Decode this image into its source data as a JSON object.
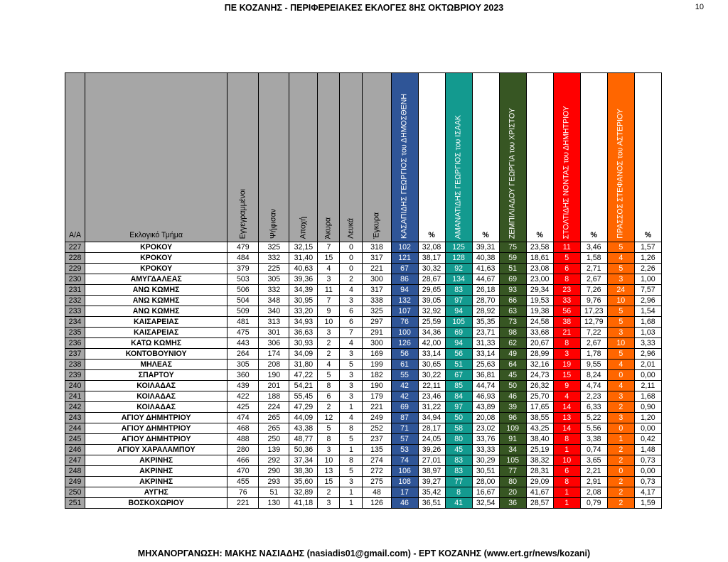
{
  "header": {
    "title": "ΠΕ ΚΟΖΑΝΗΣ - ΠΕΡΙΦΕΡΕΙΑΚΕΣ ΕΚΛΟΓΕΣ 8ΗΣ ΟΚΤΩΒΡΙΟΥ 2023",
    "page_number": "10"
  },
  "footer": {
    "text": "ΜΗΧΑΝΟΡΓΑΝΩΣΗ: ΜΑΚΗΣ ΝΑΣΙΑΔΗΣ (nasiadis01@gmail.com) - ΕΡΤ ΚΟΖΑΝΗΣ (www.ert.gr/news/kozani)"
  },
  "colors": {
    "gray": "#a6a6a6",
    "blue": "#2f5597",
    "teal": "#139a8f",
    "green": "#375623",
    "red": "#ff0000",
    "orange": "#ff6600"
  },
  "columns": {
    "aa": "Α/Α",
    "section": "Εκλογικό Τμήμα",
    "registered": "Εγγεγραμμένοι",
    "voted": "Ψήφισαν",
    "abstention": "Αποχή",
    "invalid": "Άκυρα",
    "blank": "Λευκά",
    "valid": "Έγκυρα",
    "pct": "%",
    "candidates": [
      {
        "name": "ΚΑΣΑΠΙΔΗΣ ΓΕΩΡΓΙΟΣ του ΔΗΜΟΣΘΕΝΗ",
        "color": "#2f5597"
      },
      {
        "name": "ΑΜΑΝΑΤΙΔΗΣ ΓΕΩΡΓΙΟΣ του ΙΣΑΑΚ",
        "color": "#139a8f"
      },
      {
        "name": "ΖΕΜΠΙΛΙΑΔΟΥ ΓΕΩΡΓΙΑ του ΧΡΙΣΤΟΥ",
        "color": "#375623"
      },
      {
        "name": "ΣΤΟΛΤΙΔΗΣ ΝΟΝΤΑΣ του ΔΗΜΗΤΡΙΟΥ",
        "color": "#ff0000"
      },
      {
        "name": "ΠΡΑΣΣΟΣ ΣΤΕΦΑΝΟΣ του ΑΣΤΕΡΙΟΥ",
        "color": "#ff6600"
      }
    ]
  },
  "rows": [
    {
      "aa": "227",
      "name": "ΚΡΟΚΟΥ",
      "reg": "479",
      "voted": "325",
      "abst": "32,15",
      "inv": "7",
      "blank": "0",
      "valid": "318",
      "c1": "102",
      "p1": "32,08",
      "c2": "125",
      "p2": "39,31",
      "c3": "75",
      "p3": "23,58",
      "c4": "11",
      "p4": "3,46",
      "c5": "5",
      "p5": "1,57"
    },
    {
      "aa": "228",
      "name": "ΚΡΟΚΟΥ",
      "reg": "484",
      "voted": "332",
      "abst": "31,40",
      "inv": "15",
      "blank": "0",
      "valid": "317",
      "c1": "121",
      "p1": "38,17",
      "c2": "128",
      "p2": "40,38",
      "c3": "59",
      "p3": "18,61",
      "c4": "5",
      "p4": "1,58",
      "c5": "4",
      "p5": "1,26"
    },
    {
      "aa": "229",
      "name": "ΚΡΟΚΟΥ",
      "reg": "379",
      "voted": "225",
      "abst": "40,63",
      "inv": "4",
      "blank": "0",
      "valid": "221",
      "c1": "67",
      "p1": "30,32",
      "c2": "92",
      "p2": "41,63",
      "c3": "51",
      "p3": "23,08",
      "c4": "6",
      "p4": "2,71",
      "c5": "5",
      "p5": "2,26"
    },
    {
      "aa": "230",
      "name": "ΑΜΥΓΔΑΛΕΑΣ",
      "reg": "503",
      "voted": "305",
      "abst": "39,36",
      "inv": "3",
      "blank": "2",
      "valid": "300",
      "c1": "86",
      "p1": "28,67",
      "c2": "134",
      "p2": "44,67",
      "c3": "69",
      "p3": "23,00",
      "c4": "8",
      "p4": "2,67",
      "c5": "3",
      "p5": "1,00"
    },
    {
      "aa": "231",
      "name": "ΑΝΩ ΚΩΜΗΣ",
      "reg": "506",
      "voted": "332",
      "abst": "34,39",
      "inv": "11",
      "blank": "4",
      "valid": "317",
      "c1": "94",
      "p1": "29,65",
      "c2": "83",
      "p2": "26,18",
      "c3": "93",
      "p3": "29,34",
      "c4": "23",
      "p4": "7,26",
      "c5": "24",
      "p5": "7,57"
    },
    {
      "aa": "232",
      "name": "ΑΝΩ ΚΩΜΗΣ",
      "reg": "504",
      "voted": "348",
      "abst": "30,95",
      "inv": "7",
      "blank": "3",
      "valid": "338",
      "c1": "132",
      "p1": "39,05",
      "c2": "97",
      "p2": "28,70",
      "c3": "66",
      "p3": "19,53",
      "c4": "33",
      "p4": "9,76",
      "c5": "10",
      "p5": "2,96"
    },
    {
      "aa": "233",
      "name": "ΑΝΩ ΚΩΜΗΣ",
      "reg": "509",
      "voted": "340",
      "abst": "33,20",
      "inv": "9",
      "blank": "6",
      "valid": "325",
      "c1": "107",
      "p1": "32,92",
      "c2": "94",
      "p2": "28,92",
      "c3": "63",
      "p3": "19,38",
      "c4": "56",
      "p4": "17,23",
      "c5": "5",
      "p5": "1,54"
    },
    {
      "aa": "234",
      "name": "ΚΑΙΣΑΡΕΙΑΣ",
      "reg": "481",
      "voted": "313",
      "abst": "34,93",
      "inv": "10",
      "blank": "6",
      "valid": "297",
      "c1": "76",
      "p1": "25,59",
      "c2": "105",
      "p2": "35,35",
      "c3": "73",
      "p3": "24,58",
      "c4": "38",
      "p4": "12,79",
      "c5": "5",
      "p5": "1,68"
    },
    {
      "aa": "235",
      "name": "ΚΑΙΣΑΡΕΙΑΣ",
      "reg": "475",
      "voted": "301",
      "abst": "36,63",
      "inv": "3",
      "blank": "7",
      "valid": "291",
      "c1": "100",
      "p1": "34,36",
      "c2": "69",
      "p2": "23,71",
      "c3": "98",
      "p3": "33,68",
      "c4": "21",
      "p4": "7,22",
      "c5": "3",
      "p5": "1,03"
    },
    {
      "aa": "236",
      "name": "ΚΑΤΩ ΚΩΜΗΣ",
      "reg": "443",
      "voted": "306",
      "abst": "30,93",
      "inv": "2",
      "blank": "4",
      "valid": "300",
      "c1": "126",
      "p1": "42,00",
      "c2": "94",
      "p2": "31,33",
      "c3": "62",
      "p3": "20,67",
      "c4": "8",
      "p4": "2,67",
      "c5": "10",
      "p5": "3,33"
    },
    {
      "aa": "237",
      "name": "ΚΟΝΤΟΒΟΥΝΙΟΥ",
      "reg": "264",
      "voted": "174",
      "abst": "34,09",
      "inv": "2",
      "blank": "3",
      "valid": "169",
      "c1": "56",
      "p1": "33,14",
      "c2": "56",
      "p2": "33,14",
      "c3": "49",
      "p3": "28,99",
      "c4": "3",
      "p4": "1,78",
      "c5": "5",
      "p5": "2,96"
    },
    {
      "aa": "238",
      "name": "ΜΗΛΕΑΣ",
      "reg": "305",
      "voted": "208",
      "abst": "31,80",
      "inv": "4",
      "blank": "5",
      "valid": "199",
      "c1": "61",
      "p1": "30,65",
      "c2": "51",
      "p2": "25,63",
      "c3": "64",
      "p3": "32,16",
      "c4": "19",
      "p4": "9,55",
      "c5": "4",
      "p5": "2,01"
    },
    {
      "aa": "239",
      "name": "ΣΠΑΡΤΟΥ",
      "reg": "360",
      "voted": "190",
      "abst": "47,22",
      "inv": "5",
      "blank": "3",
      "valid": "182",
      "c1": "55",
      "p1": "30,22",
      "c2": "67",
      "p2": "36,81",
      "c3": "45",
      "p3": "24,73",
      "c4": "15",
      "p4": "8,24",
      "c5": "0",
      "p5": "0,00"
    },
    {
      "aa": "240",
      "name": "ΚΟΙΛΑΔΑΣ",
      "reg": "439",
      "voted": "201",
      "abst": "54,21",
      "inv": "8",
      "blank": "3",
      "valid": "190",
      "c1": "42",
      "p1": "22,11",
      "c2": "85",
      "p2": "44,74",
      "c3": "50",
      "p3": "26,32",
      "c4": "9",
      "p4": "4,74",
      "c5": "4",
      "p5": "2,11"
    },
    {
      "aa": "241",
      "name": "ΚΟΙΛΑΔΑΣ",
      "reg": "422",
      "voted": "188",
      "abst": "55,45",
      "inv": "6",
      "blank": "3",
      "valid": "179",
      "c1": "42",
      "p1": "23,46",
      "c2": "84",
      "p2": "46,93",
      "c3": "46",
      "p3": "25,70",
      "c4": "4",
      "p4": "2,23",
      "c5": "3",
      "p5": "1,68"
    },
    {
      "aa": "242",
      "name": "ΚΟΙΛΑΔΑΣ",
      "reg": "425",
      "voted": "224",
      "abst": "47,29",
      "inv": "2",
      "blank": "1",
      "valid": "221",
      "c1": "69",
      "p1": "31,22",
      "c2": "97",
      "p2": "43,89",
      "c3": "39",
      "p3": "17,65",
      "c4": "14",
      "p4": "6,33",
      "c5": "2",
      "p5": "0,90"
    },
    {
      "aa": "243",
      "name": "ΑΓΙΟΥ ΔΗΜΗΤΡΙΟΥ",
      "reg": "474",
      "voted": "265",
      "abst": "44,09",
      "inv": "12",
      "blank": "4",
      "valid": "249",
      "c1": "87",
      "p1": "34,94",
      "c2": "50",
      "p2": "20,08",
      "c3": "96",
      "p3": "38,55",
      "c4": "13",
      "p4": "5,22",
      "c5": "3",
      "p5": "1,20"
    },
    {
      "aa": "244",
      "name": "ΑΓΙΟΥ ΔΗΜΗΤΡΙΟΥ",
      "reg": "468",
      "voted": "265",
      "abst": "43,38",
      "inv": "5",
      "blank": "8",
      "valid": "252",
      "c1": "71",
      "p1": "28,17",
      "c2": "58",
      "p2": "23,02",
      "c3": "109",
      "p3": "43,25",
      "c4": "14",
      "p4": "5,56",
      "c5": "0",
      "p5": "0,00"
    },
    {
      "aa": "245",
      "name": "ΑΓΙΟΥ ΔΗΜΗΤΡΙΟΥ",
      "reg": "488",
      "voted": "250",
      "abst": "48,77",
      "inv": "8",
      "blank": "5",
      "valid": "237",
      "c1": "57",
      "p1": "24,05",
      "c2": "80",
      "p2": "33,76",
      "c3": "91",
      "p3": "38,40",
      "c4": "8",
      "p4": "3,38",
      "c5": "1",
      "p5": "0,42"
    },
    {
      "aa": "246",
      "name": "ΑΓΙΟΥ ΧΑΡΑΛΑΜΠΟΥ",
      "reg": "280",
      "voted": "139",
      "abst": "50,36",
      "inv": "3",
      "blank": "1",
      "valid": "135",
      "c1": "53",
      "p1": "39,26",
      "c2": "45",
      "p2": "33,33",
      "c3": "34",
      "p3": "25,19",
      "c4": "1",
      "p4": "0,74",
      "c5": "2",
      "p5": "1,48"
    },
    {
      "aa": "247",
      "name": "ΑΚΡΙΝΗΣ",
      "reg": "466",
      "voted": "292",
      "abst": "37,34",
      "inv": "10",
      "blank": "8",
      "valid": "274",
      "c1": "74",
      "p1": "27,01",
      "c2": "83",
      "p2": "30,29",
      "c3": "105",
      "p3": "38,32",
      "c4": "10",
      "p4": "3,65",
      "c5": "2",
      "p5": "0,73"
    },
    {
      "aa": "248",
      "name": "ΑΚΡΙΝΗΣ",
      "reg": "470",
      "voted": "290",
      "abst": "38,30",
      "inv": "13",
      "blank": "5",
      "valid": "272",
      "c1": "106",
      "p1": "38,97",
      "c2": "83",
      "p2": "30,51",
      "c3": "77",
      "p3": "28,31",
      "c4": "6",
      "p4": "2,21",
      "c5": "0",
      "p5": "0,00"
    },
    {
      "aa": "249",
      "name": "ΑΚΡΙΝΗΣ",
      "reg": "455",
      "voted": "293",
      "abst": "35,60",
      "inv": "15",
      "blank": "3",
      "valid": "275",
      "c1": "108",
      "p1": "39,27",
      "c2": "77",
      "p2": "28,00",
      "c3": "80",
      "p3": "29,09",
      "c4": "8",
      "p4": "2,91",
      "c5": "2",
      "p5": "0,73"
    },
    {
      "aa": "250",
      "name": "ΑΥΓΗΣ",
      "reg": "76",
      "voted": "51",
      "abst": "32,89",
      "inv": "2",
      "blank": "1",
      "valid": "48",
      "c1": "17",
      "p1": "35,42",
      "c2": "8",
      "p2": "16,67",
      "c3": "20",
      "p3": "41,67",
      "c4": "1",
      "p4": "2,08",
      "c5": "2",
      "p5": "4,17"
    },
    {
      "aa": "251",
      "name": "ΒΟΣΚΟΧΩΡΙΟΥ",
      "reg": "221",
      "voted": "130",
      "abst": "41,18",
      "inv": "3",
      "blank": "1",
      "valid": "126",
      "c1": "46",
      "p1": "36,51",
      "c2": "41",
      "p2": "32,54",
      "c3": "36",
      "p3": "28,57",
      "c4": "1",
      "p4": "0,79",
      "c5": "2",
      "p5": "1,59"
    }
  ]
}
